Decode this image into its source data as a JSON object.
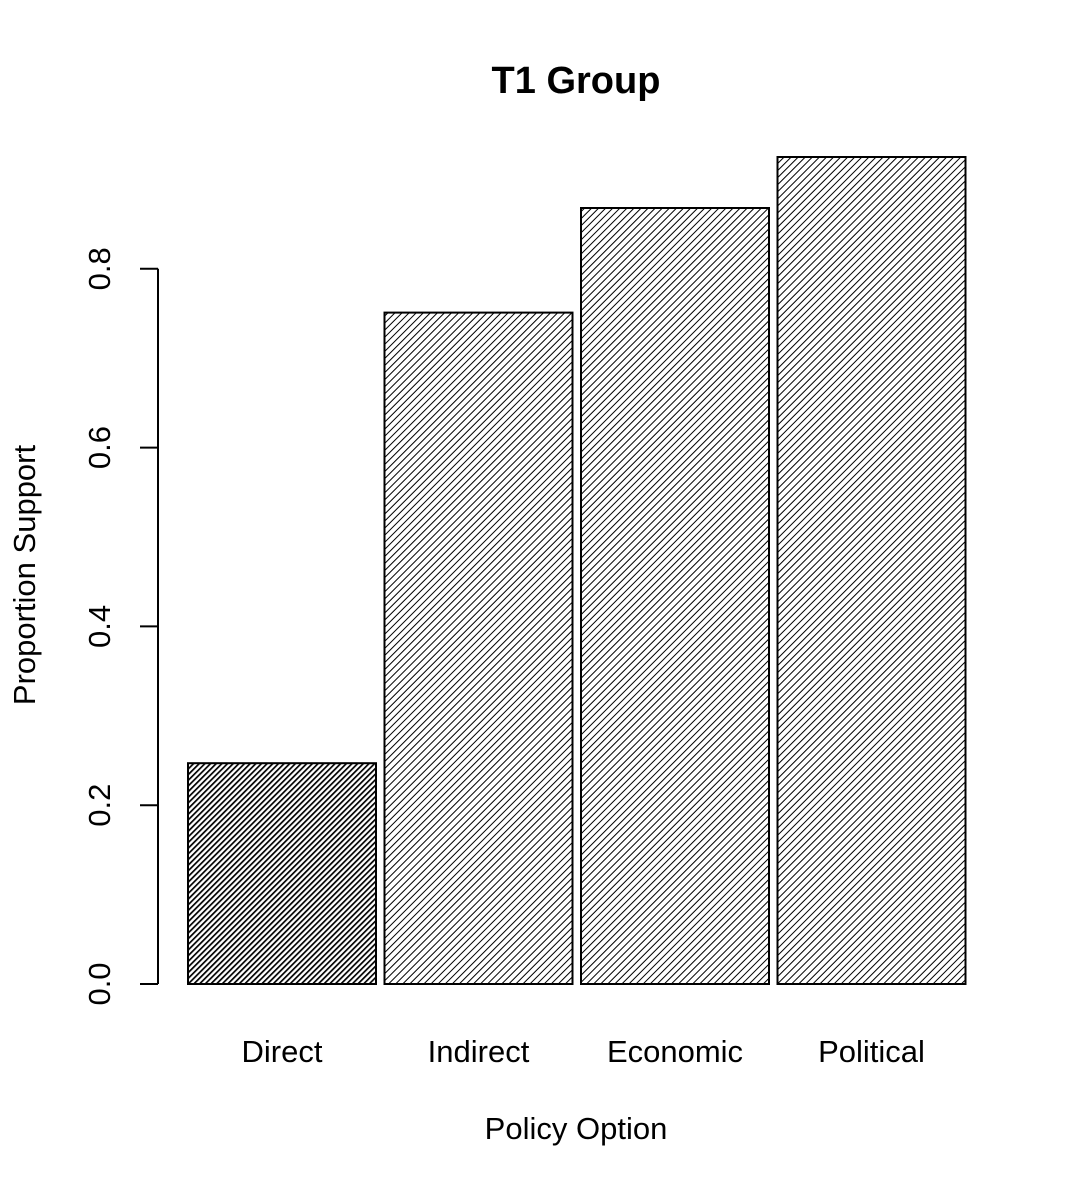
{
  "chart_data": {
    "type": "bar",
    "title": "T1 Group",
    "xlabel": "Policy Option",
    "ylabel": "Proportion Support",
    "categories": [
      "Direct",
      "Indirect",
      "Economic",
      "Political"
    ],
    "values": [
      0.247,
      0.751,
      0.868,
      0.925
    ],
    "ylim": [
      0,
      0.925
    ],
    "yticks": [
      0.0,
      0.2,
      0.4,
      0.6,
      0.8
    ],
    "ytick_labels": [
      "0.0",
      "0.2",
      "0.4",
      "0.6",
      "0.8"
    ],
    "bar_fills": [
      "dense-hatch",
      "hatch",
      "hatch",
      "hatch"
    ],
    "grid": false,
    "colors": {
      "bar_stroke": "#000000",
      "hatch": "#000000",
      "background": "#ffffff"
    }
  }
}
